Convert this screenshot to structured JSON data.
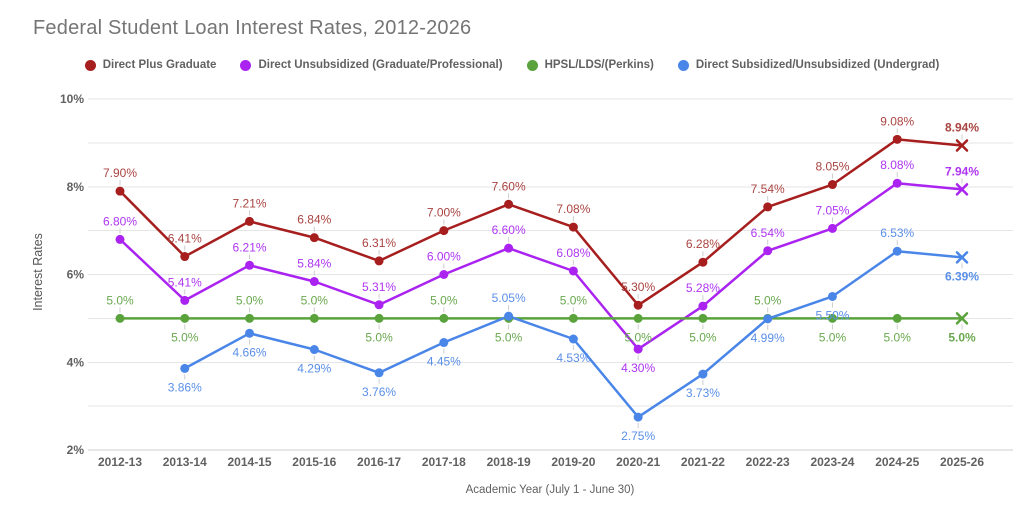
{
  "title": "Federal Student Loan Interest Rates, 2012-2026",
  "legend": [
    {
      "label": "Direct Plus Graduate",
      "color": "#A61E1E"
    },
    {
      "label": "Direct Unsubsidized (Graduate/Professional)",
      "color": "#AA23F0"
    },
    {
      "label": "HPSL/LDS/(Perkins)",
      "color": "#5AA33C"
    },
    {
      "label": "Direct Subsidized/Unsubsidized (Undergrad)",
      "color": "#4A86E8"
    }
  ],
  "chart_data": {
    "type": "line",
    "title": "Federal Student Loan Interest Rates, 2012-2026",
    "xlabel": "Academic Year (July 1 - June 30)",
    "ylabel": "Interest Rates",
    "ylim": [
      2,
      10
    ],
    "grid": "horizontal lines every 1%, labels every 2%",
    "legend_position": "top",
    "y_ticks": [
      {
        "value": 2,
        "label": "2%"
      },
      {
        "value": 4,
        "label": "4%"
      },
      {
        "value": 6,
        "label": "6%"
      },
      {
        "value": 8,
        "label": "8%"
      },
      {
        "value": 10,
        "label": "10%"
      }
    ],
    "categories": [
      "2012-13",
      "2013-14",
      "2014-15",
      "2015-16",
      "2016-17",
      "2017-18",
      "2018-19",
      "2019-20",
      "2020-21",
      "2021-22",
      "2022-23",
      "2023-24",
      "2024-25",
      "2025-26"
    ],
    "series": [
      {
        "name": "Direct Plus Graduate",
        "color": "#A61E1E",
        "label_color": "#A94441",
        "last_marker": "x",
        "values": [
          7.9,
          6.41,
          7.21,
          6.84,
          6.31,
          7.0,
          7.6,
          7.08,
          5.3,
          6.28,
          7.54,
          8.05,
          9.08,
          8.94
        ],
        "labels": [
          "7.90%",
          "6.41%",
          "7.21%",
          "6.84%",
          "6.31%",
          "7.00%",
          "7.60%",
          "7.08%",
          "5.30%",
          "6.28%",
          "7.54%",
          "8.05%",
          "9.08%",
          "8.94%"
        ],
        "label_side": [
          "above",
          "above",
          "above",
          "above",
          "above",
          "above",
          "above",
          "above",
          "above",
          "above",
          "above",
          "above",
          "above",
          "above"
        ]
      },
      {
        "name": "Direct Unsubsidized (Graduate/Professional)",
        "color": "#AA23F0",
        "label_color": "#AE35F2",
        "last_marker": "x",
        "values": [
          6.8,
          5.41,
          6.21,
          5.84,
          5.31,
          6.0,
          6.6,
          6.08,
          4.3,
          5.28,
          6.54,
          7.05,
          8.08,
          7.94
        ],
        "labels": [
          "6.80%",
          "5.41%",
          "6.21%",
          "5.84%",
          "5.31%",
          "6.00%",
          "6.60%",
          "6.08%",
          "4.30%",
          "5.28%",
          "6.54%",
          "7.05%",
          "8.08%",
          "7.94%"
        ],
        "label_side": [
          "above",
          "above",
          "above",
          "above",
          "above",
          "above",
          "above",
          "above",
          "below",
          "above",
          "above",
          "above",
          "above",
          "above"
        ]
      },
      {
        "name": "HPSL/LDS/(Perkins)",
        "color": "#5AA33C",
        "label_color": "#6AA84F",
        "last_marker": "x",
        "values": [
          5.0,
          5.0,
          5.0,
          5.0,
          5.0,
          5.0,
          5.0,
          5.0,
          5.0,
          5.0,
          5.0,
          5.0,
          5.0,
          5.0
        ],
        "labels": [
          "5.0%",
          "5.0%",
          "5.0%",
          "5.0%",
          "5.0%",
          "5.0%",
          "5.0%",
          "5.0%",
          "5.0%",
          "5.0%",
          "5.0%",
          "5.0%",
          "5.0%",
          "5.0%"
        ],
        "label_side": [
          "above",
          "below",
          "above",
          "above",
          "below",
          "above",
          "below",
          "above",
          "below",
          "below",
          "above",
          "below",
          "below",
          "below"
        ]
      },
      {
        "name": "Direct Subsidized/Unsubsidized (Undergrad)",
        "color": "#4A86E8",
        "label_color": "#5A8FE8",
        "last_marker": "x",
        "values": [
          null,
          3.86,
          4.66,
          4.29,
          3.76,
          4.45,
          5.05,
          4.53,
          2.75,
          3.73,
          4.99,
          5.5,
          6.53,
          6.39
        ],
        "labels": [
          null,
          "3.86%",
          "4.66%",
          "4.29%",
          "3.76%",
          "4.45%",
          "5.05%",
          "4.53%",
          "2.75%",
          "3.73%",
          "4.99%",
          "5.50%",
          "6.53%",
          "6.39%"
        ],
        "label_side": [
          null,
          "below",
          "below",
          "below",
          "below",
          "below",
          "above",
          "below",
          "below",
          "below",
          "below",
          "below",
          "above",
          "below"
        ]
      }
    ]
  }
}
